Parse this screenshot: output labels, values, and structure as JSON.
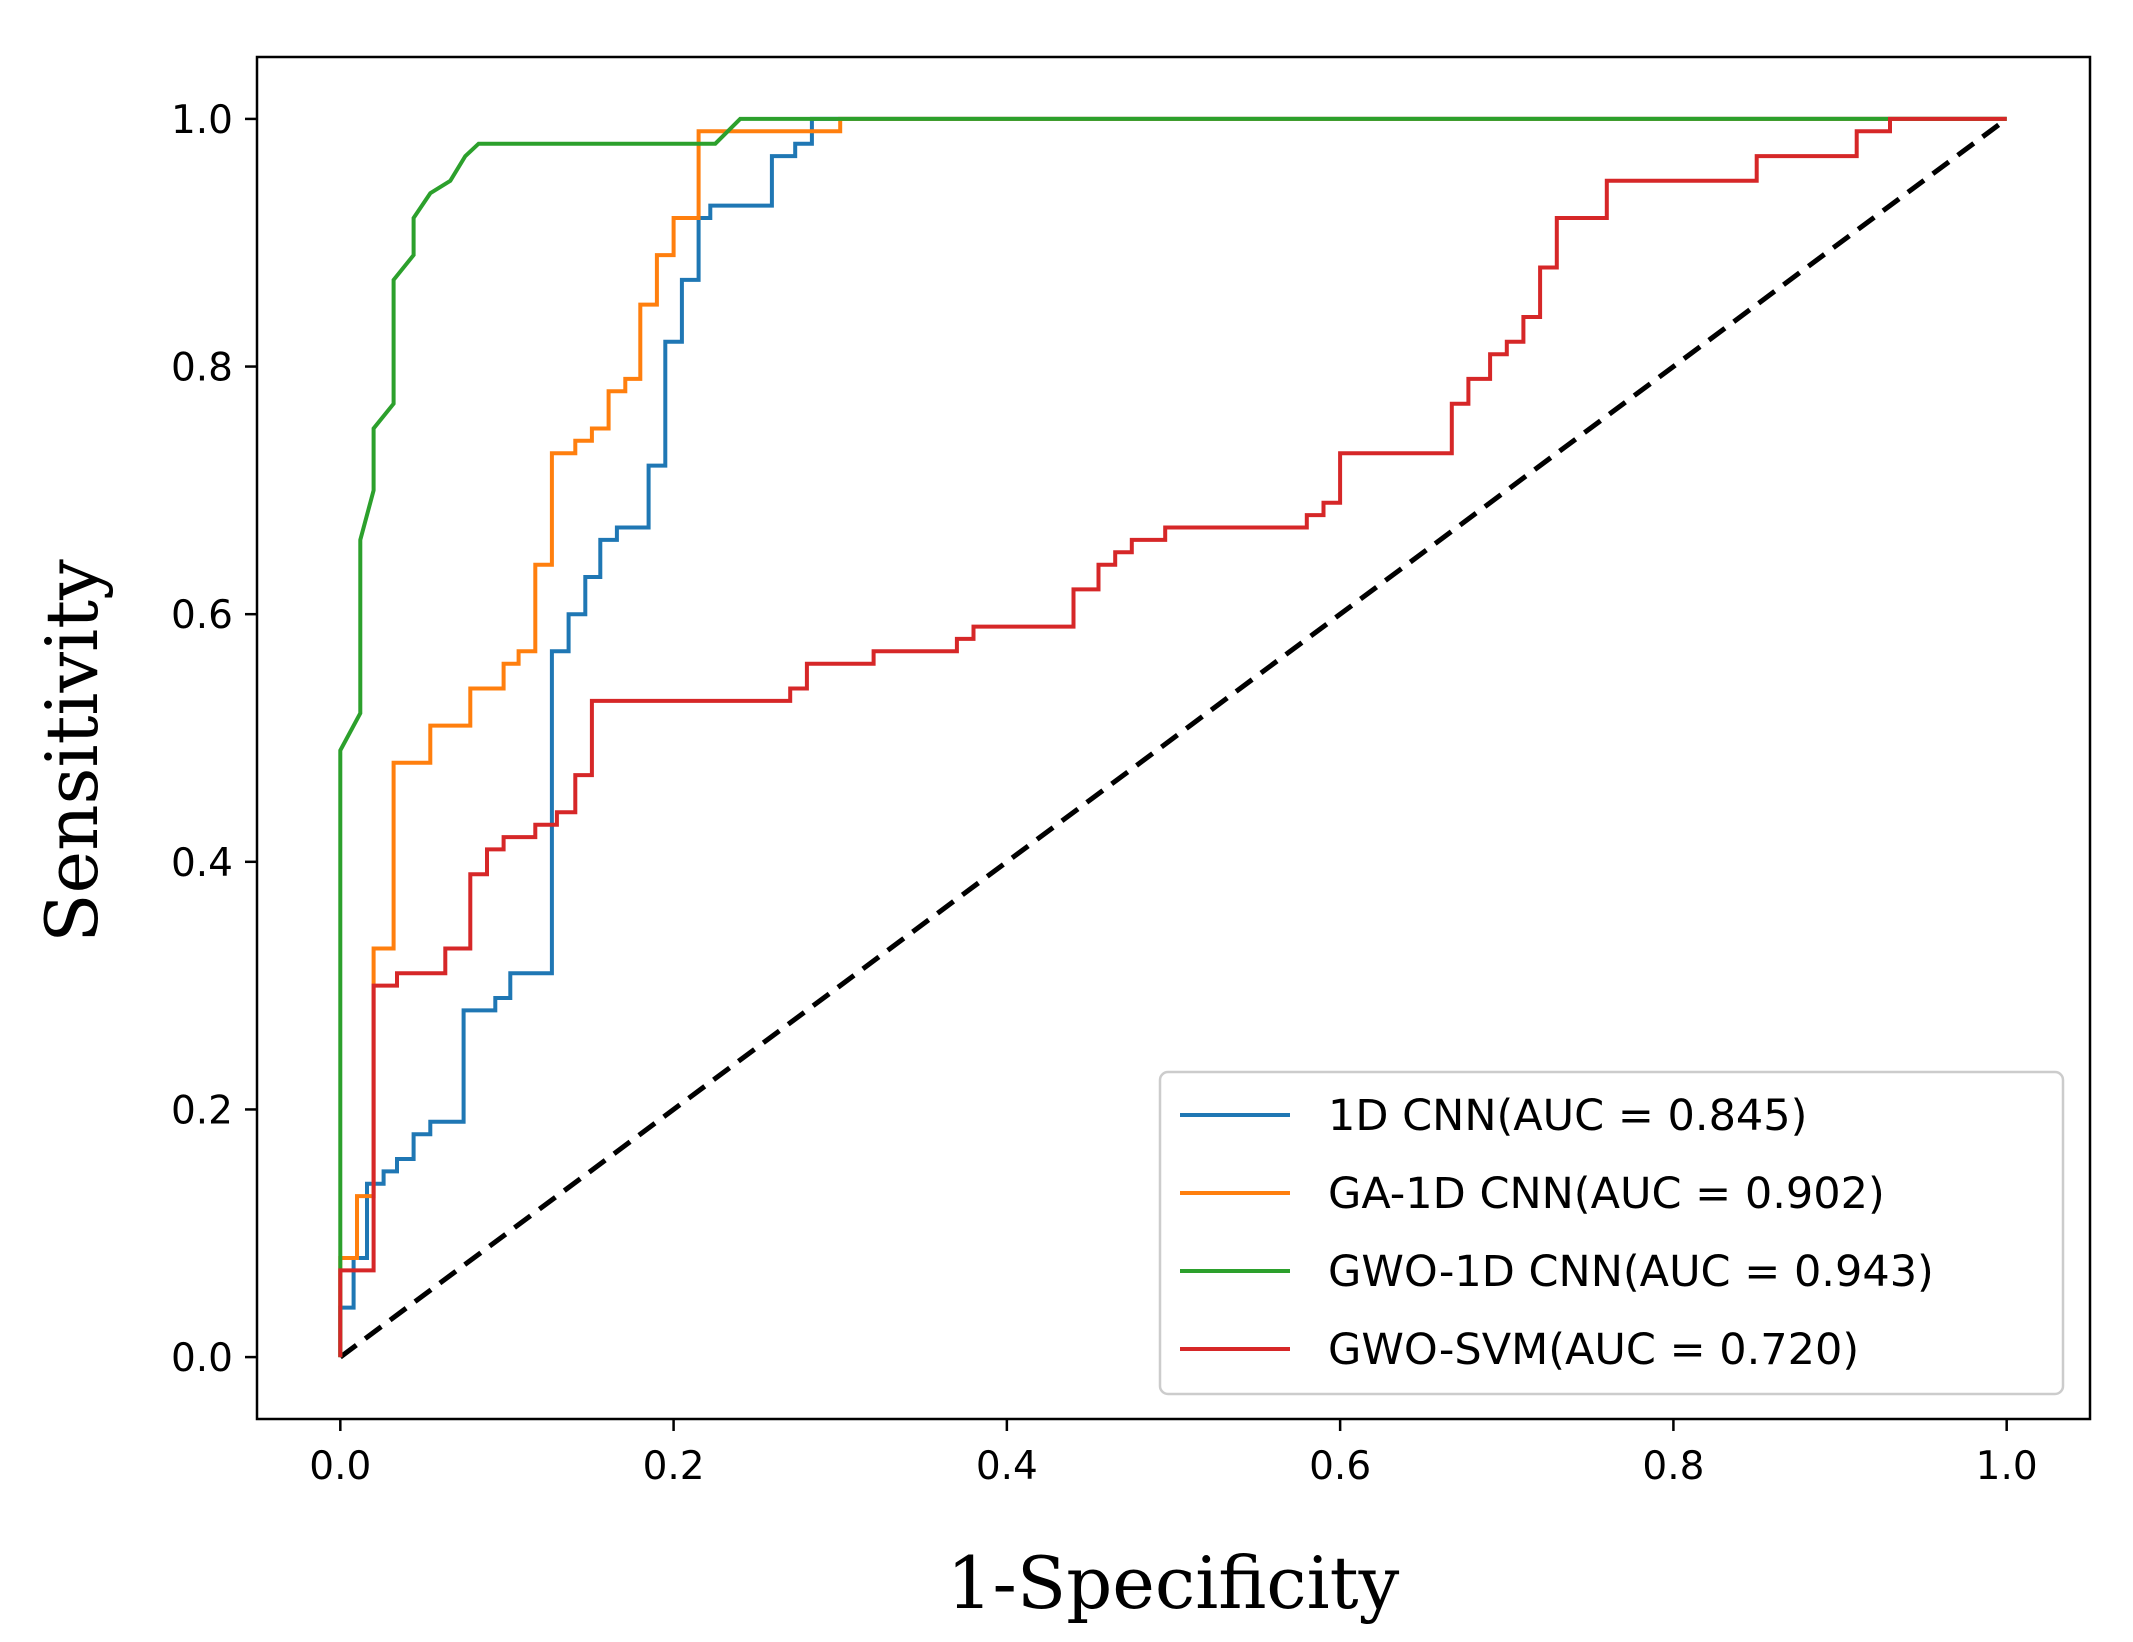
{
  "chart_data": {
    "type": "line",
    "title": "",
    "xlabel": "1-Specificity",
    "ylabel": "Sensitivity",
    "xlim": [
      -0.05,
      1.05
    ],
    "ylim": [
      -0.05,
      1.05
    ],
    "xticks": [
      "0.0",
      "0.2",
      "0.4",
      "0.6",
      "0.8",
      "1.0"
    ],
    "yticks": [
      "0.0",
      "0.2",
      "0.4",
      "0.6",
      "0.8",
      "1.0"
    ],
    "grid": false,
    "legend_position": "lower-right",
    "reference_line": {
      "x": [
        0,
        1
      ],
      "y": [
        0,
        1
      ],
      "color": "#000000",
      "style": "dashed"
    },
    "series": [
      {
        "name": "1D CNN(AUC = 0.845)",
        "color": "#1f77b4",
        "x": [
          0,
          0,
          0.008,
          0.008,
          0.016,
          0.016,
          0.026,
          0.026,
          0.034,
          0.034,
          0.044,
          0.044,
          0.054,
          0.054,
          0.063,
          0.063,
          0.074,
          0.074,
          0.093,
          0.093,
          0.102,
          0.102,
          0.112,
          0.112,
          0.127,
          0.127,
          0.137,
          0.137,
          0.147,
          0.147,
          0.156,
          0.156,
          0.166,
          0.166,
          0.185,
          0.185,
          0.195,
          0.195,
          0.205,
          0.205,
          0.215,
          0.215,
          0.222,
          0.222,
          0.243,
          0.243,
          0.259,
          0.259,
          0.273,
          0.273,
          0.283,
          0.283,
          1.0
        ],
        "y": [
          0,
          0.04,
          0.04,
          0.08,
          0.08,
          0.14,
          0.14,
          0.15,
          0.15,
          0.16,
          0.16,
          0.18,
          0.18,
          0.19,
          0.19,
          0.19,
          0.19,
          0.28,
          0.28,
          0.29,
          0.29,
          0.31,
          0.31,
          0.31,
          0.31,
          0.57,
          0.57,
          0.6,
          0.6,
          0.63,
          0.63,
          0.66,
          0.66,
          0.67,
          0.67,
          0.72,
          0.72,
          0.82,
          0.82,
          0.87,
          0.87,
          0.92,
          0.92,
          0.93,
          0.93,
          0.93,
          0.93,
          0.97,
          0.97,
          0.98,
          0.98,
          1.0,
          1.0
        ]
      },
      {
        "name": "GA-1D CNN(AUC = 0.902)",
        "color": "#ff7f0e",
        "x": [
          0,
          0,
          0.01,
          0.01,
          0.02,
          0.02,
          0.032,
          0.032,
          0.054,
          0.054,
          0.078,
          0.078,
          0.098,
          0.098,
          0.107,
          0.107,
          0.117,
          0.117,
          0.127,
          0.127,
          0.141,
          0.141,
          0.151,
          0.151,
          0.161,
          0.161,
          0.171,
          0.171,
          0.18,
          0.18,
          0.19,
          0.19,
          0.2,
          0.2,
          0.215,
          0.215,
          0.225,
          0.225,
          0.3,
          0.3,
          1.0
        ],
        "y": [
          0,
          0.08,
          0.08,
          0.13,
          0.13,
          0.33,
          0.33,
          0.48,
          0.48,
          0.51,
          0.51,
          0.54,
          0.54,
          0.56,
          0.56,
          0.57,
          0.57,
          0.64,
          0.64,
          0.73,
          0.73,
          0.74,
          0.74,
          0.75,
          0.75,
          0.78,
          0.78,
          0.79,
          0.79,
          0.85,
          0.85,
          0.89,
          0.89,
          0.92,
          0.92,
          0.99,
          0.99,
          0.99,
          0.99,
          1.0,
          1.0
        ]
      },
      {
        "name": "GWO-1D CNN(AUC = 0.943)",
        "color": "#2ca02c",
        "x": [
          0,
          0,
          0.012,
          0.012,
          0.02,
          0.02,
          0.032,
          0.032,
          0.044,
          0.044,
          0.054,
          0.054,
          0.066,
          0.066,
          0.075,
          0.075,
          0.083,
          0.083,
          0.225,
          0.24,
          1.0
        ],
        "y": [
          0,
          0.49,
          0.52,
          0.66,
          0.7,
          0.75,
          0.77,
          0.87,
          0.89,
          0.92,
          0.94,
          0.94,
          0.95,
          0.95,
          0.97,
          0.97,
          0.98,
          0.98,
          0.98,
          1.0,
          1.0
        ],
        "note": ""
      },
      {
        "name": "GWO-SVM(AUC = 0.720)",
        "color": "#d62728",
        "x": [
          0,
          0,
          0.02,
          0.02,
          0.034,
          0.034,
          0.063,
          0.063,
          0.078,
          0.078,
          0.088,
          0.088,
          0.098,
          0.098,
          0.117,
          0.117,
          0.13,
          0.13,
          0.141,
          0.141,
          0.151,
          0.151,
          0.27,
          0.27,
          0.28,
          0.28,
          0.32,
          0.32,
          0.37,
          0.37,
          0.38,
          0.38,
          0.44,
          0.44,
          0.455,
          0.455,
          0.465,
          0.465,
          0.475,
          0.475,
          0.495,
          0.495,
          0.58,
          0.58,
          0.59,
          0.59,
          0.6,
          0.6,
          0.667,
          0.667,
          0.677,
          0.677,
          0.69,
          0.69,
          0.7,
          0.7,
          0.71,
          0.71,
          0.72,
          0.72,
          0.73,
          0.73,
          0.76,
          0.76,
          0.85,
          0.85,
          0.91,
          0.91,
          0.93,
          0.93,
          1.0
        ],
        "y": [
          0,
          0.07,
          0.07,
          0.3,
          0.3,
          0.31,
          0.31,
          0.33,
          0.33,
          0.39,
          0.39,
          0.41,
          0.41,
          0.42,
          0.42,
          0.43,
          0.43,
          0.44,
          0.44,
          0.47,
          0.47,
          0.53,
          0.53,
          0.54,
          0.54,
          0.56,
          0.56,
          0.57,
          0.57,
          0.58,
          0.58,
          0.59,
          0.59,
          0.62,
          0.62,
          0.64,
          0.64,
          0.65,
          0.65,
          0.66,
          0.66,
          0.67,
          0.67,
          0.68,
          0.68,
          0.69,
          0.69,
          0.73,
          0.73,
          0.77,
          0.77,
          0.79,
          0.79,
          0.81,
          0.81,
          0.82,
          0.82,
          0.84,
          0.84,
          0.88,
          0.88,
          0.92,
          0.92,
          0.95,
          0.95,
          0.97,
          0.97,
          0.99,
          0.99,
          1.0,
          1.0
        ]
      }
    ]
  }
}
